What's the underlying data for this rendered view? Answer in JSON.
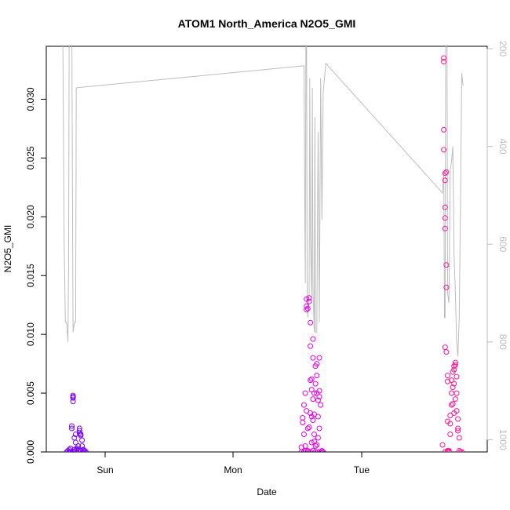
{
  "chart_data": {
    "type": "scatter",
    "title": "ATOM1 North_America N2O5_GMI",
    "xlabel": "Date",
    "ylabel": "N2O5_GMI",
    "x_ticks": [
      "Sun",
      "Mon",
      "Tue"
    ],
    "y_ticks": [
      "0.000",
      "0.005",
      "0.010",
      "0.015",
      "0.020",
      "0.025",
      "0.030"
    ],
    "y2_ticks": [
      "200",
      "400",
      "600",
      "800",
      "1000"
    ],
    "ylim": [
      0,
      0.0345
    ],
    "y2lim": [
      1025,
      195
    ],
    "grid": false,
    "series": [
      {
        "style": "points",
        "color": "#7b00ff",
        "points": [
          [
            -0.3,
            0.0
          ],
          [
            -0.29,
            0.0001
          ],
          [
            -0.28,
            0.0002
          ],
          [
            -0.27,
            0.0003
          ],
          [
            -0.26,
            0.002
          ],
          [
            -0.26,
            0.0022
          ],
          [
            -0.25,
            0.0047
          ],
          [
            -0.25,
            0.0048
          ],
          [
            -0.25,
            0.0046
          ],
          [
            -0.25,
            0.0043
          ],
          [
            -0.24,
            0.0002
          ],
          [
            -0.24,
            0.0
          ],
          [
            -0.23,
            0.0001
          ],
          [
            -0.23,
            0.0008
          ],
          [
            -0.22,
            0.0003
          ],
          [
            -0.22,
            0.0
          ],
          [
            -0.21,
            0.0001
          ],
          [
            -0.21,
            0.0005
          ],
          [
            -0.2,
            0.002
          ],
          [
            -0.2,
            0.0018
          ],
          [
            -0.2,
            0.0016
          ],
          [
            -0.19,
            0.0015
          ],
          [
            -0.19,
            0.0014
          ],
          [
            -0.18,
            0.001
          ],
          [
            -0.18,
            0.0005
          ],
          [
            -0.17,
            0.0002
          ],
          [
            -0.17,
            0.0
          ],
          [
            -0.16,
            0.0001
          ],
          [
            -0.16,
            0.0
          ],
          [
            -0.15,
            0.0
          ],
          [
            -0.24,
            0.0012
          ],
          [
            -0.23,
            0.0015
          ],
          [
            -0.27,
            0.0
          ],
          [
            -0.28,
            0.0
          ],
          [
            -0.22,
            0.0002
          ],
          [
            -0.19,
            0.0001
          ]
        ]
      },
      {
        "style": "points",
        "color": "#e800e8",
        "points": [
          [
            1.53,
            0.0
          ],
          [
            1.53,
            0.0004
          ],
          [
            1.54,
            0.0029
          ],
          [
            1.54,
            0.0025
          ],
          [
            1.55,
            0.0015
          ],
          [
            1.55,
            0.0
          ],
          [
            1.56,
            0.005
          ],
          [
            1.56,
            0.0005
          ],
          [
            1.57,
            0.0121
          ],
          [
            1.57,
            0.0124
          ],
          [
            1.57,
            0.013
          ],
          [
            1.58,
            0.0122
          ],
          [
            1.58,
            0.002
          ],
          [
            1.58,
            0.0001
          ],
          [
            1.59,
            0.0131
          ],
          [
            1.59,
            0.0128
          ],
          [
            1.6,
            0.011
          ],
          [
            1.6,
            0.009
          ],
          [
            1.6,
            0.0061
          ],
          [
            1.61,
            0.0062
          ],
          [
            1.61,
            0.0053
          ],
          [
            1.61,
            0.003
          ],
          [
            1.62,
            0.0096
          ],
          [
            1.62,
            0.008
          ],
          [
            1.62,
            0.0045
          ],
          [
            1.63,
            0.005
          ],
          [
            1.63,
            0.0032
          ],
          [
            1.63,
            0.0015
          ],
          [
            1.64,
            0.0073
          ],
          [
            1.64,
            0.0058
          ],
          [
            1.64,
            0.0005
          ],
          [
            1.65,
            0.0065
          ],
          [
            1.65,
            0.0075
          ],
          [
            1.65,
            0.005
          ],
          [
            1.66,
            0.003
          ],
          [
            1.66,
            0.0012
          ],
          [
            1.67,
            0.008
          ],
          [
            1.67,
            0.0052
          ],
          [
            1.67,
            0.002
          ],
          [
            1.68,
            0.004
          ],
          [
            1.68,
            0.0
          ],
          [
            1.69,
            0.0001
          ],
          [
            1.69,
            0.0
          ],
          [
            1.7,
            0.0
          ],
          [
            1.56,
            0.0001
          ],
          [
            1.58,
            0.0
          ],
          [
            1.6,
            0.0
          ],
          [
            1.62,
            0.0001
          ],
          [
            1.64,
            0.0
          ],
          [
            1.66,
            0.0
          ],
          [
            1.55,
            0.004
          ],
          [
            1.57,
            0.0035
          ],
          [
            1.59,
            0.0021
          ],
          [
            1.61,
            0.0008
          ],
          [
            1.63,
            0.0009
          ],
          [
            1.65,
            0.0006
          ],
          [
            1.67,
            0.0047
          ],
          [
            1.66,
            0.0044
          ],
          [
            1.62,
            0.0027
          ],
          [
            1.6,
            0.0033
          ]
        ]
      },
      {
        "style": "points",
        "color": "#ff1493",
        "points": [
          [
            2.63,
            0.0006
          ],
          [
            2.64,
            0.0332
          ],
          [
            2.64,
            0.0335
          ],
          [
            2.64,
            0.0274
          ],
          [
            2.64,
            0.0257
          ],
          [
            2.65,
            0.0231
          ],
          [
            2.65,
            0.0237
          ],
          [
            2.65,
            0.0208
          ],
          [
            2.65,
            0.0199
          ],
          [
            2.65,
            0.019
          ],
          [
            2.65,
            0.0089
          ],
          [
            2.66,
            0.0238
          ],
          [
            2.66,
            0.0159
          ],
          [
            2.66,
            0.014
          ],
          [
            2.66,
            0.0085
          ],
          [
            2.67,
            0.0065
          ],
          [
            2.67,
            0.006
          ],
          [
            2.67,
            0.0026
          ],
          [
            2.67,
            0.0
          ],
          [
            2.68,
            0.0001
          ],
          [
            2.68,
            0.0
          ],
          [
            2.69,
            0.0024
          ],
          [
            2.69,
            0.0015
          ],
          [
            2.7,
            0.005
          ],
          [
            2.7,
            0.004
          ],
          [
            2.71,
            0.0041
          ],
          [
            2.71,
            0.0055
          ],
          [
            2.72,
            0.007
          ],
          [
            2.72,
            0.0073
          ],
          [
            2.73,
            0.0076
          ],
          [
            2.73,
            0.0074
          ],
          [
            2.74,
            0.0064
          ],
          [
            2.74,
            0.005
          ],
          [
            2.75,
            0.0028
          ],
          [
            2.75,
            0.002
          ],
          [
            2.76,
            0.0012
          ],
          [
            2.76,
            0.0001
          ],
          [
            2.77,
            0.0
          ],
          [
            2.78,
            0.0
          ],
          [
            2.65,
            0.0
          ],
          [
            2.67,
            0.0001
          ],
          [
            2.69,
            0.0031
          ],
          [
            2.7,
            0.0061
          ],
          [
            2.71,
            0.0068
          ],
          [
            2.72,
            0.0058
          ],
          [
            2.73,
            0.0045
          ],
          [
            2.74,
            0.0035
          ],
          [
            2.75,
            0.0018
          ],
          [
            2.68,
            0.0001
          ],
          [
            2.72,
            0.0033
          ]
        ]
      },
      {
        "style": "line",
        "color": "#bdbdbd",
        "axis": "right",
        "points": [
          [
            -0.33,
            150
          ],
          [
            -0.32,
            590
          ],
          [
            -0.31,
            760
          ],
          [
            -0.3,
            760
          ],
          [
            -0.29,
            800
          ],
          [
            -0.285,
            650
          ],
          [
            -0.28,
            150
          ],
          [
            -0.27,
            150
          ],
          [
            -0.26,
            150
          ],
          [
            -0.25,
            780
          ],
          [
            -0.24,
            760
          ],
          [
            -0.23,
            760
          ],
          [
            -0.225,
            280
          ],
          [
            1.55,
            235
          ],
          [
            1.56,
            680
          ],
          [
            1.565,
            150
          ],
          [
            1.57,
            150
          ],
          [
            1.575,
            690
          ],
          [
            1.58,
            750
          ],
          [
            1.59,
            700
          ],
          [
            1.595,
            260
          ],
          [
            1.6,
            580
          ],
          [
            1.61,
            710
          ],
          [
            1.615,
            280
          ],
          [
            1.62,
            690
          ],
          [
            1.63,
            780
          ],
          [
            1.635,
            340
          ],
          [
            1.64,
            780
          ],
          [
            1.65,
            780
          ],
          [
            1.66,
            370
          ],
          [
            1.67,
            760
          ],
          [
            1.68,
            260
          ],
          [
            1.69,
            550
          ],
          [
            1.7,
            290
          ],
          [
            1.72,
            230
          ],
          [
            2.63,
            495
          ],
          [
            2.64,
            450
          ],
          [
            2.645,
            750
          ],
          [
            2.65,
            750
          ],
          [
            2.655,
            150
          ],
          [
            2.66,
            150
          ],
          [
            2.665,
            150
          ],
          [
            2.67,
            700
          ],
          [
            2.68,
            720
          ],
          [
            2.69,
            450
          ],
          [
            2.7,
            430
          ],
          [
            2.71,
            400
          ],
          [
            2.72,
            620
          ],
          [
            2.73,
            700
          ],
          [
            2.74,
            800
          ],
          [
            2.75,
            830
          ],
          [
            2.76,
            750
          ],
          [
            2.77,
            520
          ],
          [
            2.78,
            250
          ],
          [
            2.79,
            275
          ]
        ]
      }
    ]
  }
}
